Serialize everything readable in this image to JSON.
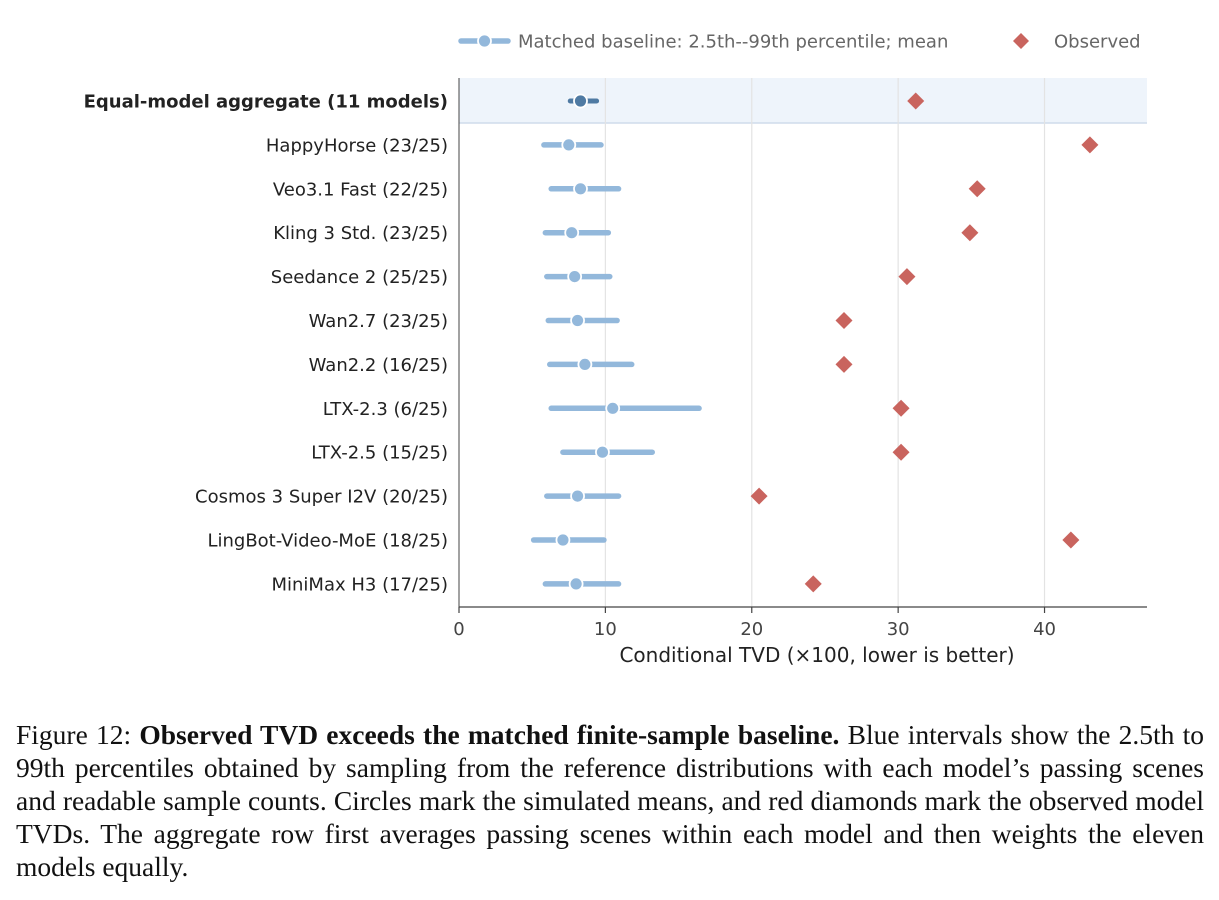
{
  "chart_data": {
    "type": "scatter",
    "xlabel": "Conditional TVD (×100, lower is better)",
    "xlim": [
      0,
      47
    ],
    "xticks": [
      0,
      10,
      20,
      30,
      40
    ],
    "grid": "vertical",
    "legend": {
      "placement": "top-right",
      "entries": [
        {
          "label": "Matched baseline: 2.5th--99th percentile; mean",
          "marker": "interval-circle"
        },
        {
          "label": "Observed",
          "marker": "diamond"
        }
      ]
    },
    "colors": {
      "interval": "#93b8db",
      "aggregate_interval": "#4f7aa3",
      "observed": "#c9645e",
      "highlight_band": "#eef4fb"
    },
    "rows": [
      {
        "label": "Equal-model aggregate (11 models)",
        "aggregate": true,
        "low": 7.6,
        "high": 9.4,
        "mean": 8.3,
        "observed": 31.2
      },
      {
        "label": "HappyHorse (23/25)",
        "low": 5.8,
        "high": 9.7,
        "mean": 7.5,
        "observed": 43.1
      },
      {
        "label": "Veo3.1 Fast (22/25)",
        "low": 6.3,
        "high": 10.9,
        "mean": 8.3,
        "observed": 35.4
      },
      {
        "label": "Kling 3 Std. (23/25)",
        "low": 5.9,
        "high": 10.2,
        "mean": 7.7,
        "observed": 34.9
      },
      {
        "label": "Seedance 2 (25/25)",
        "low": 6.0,
        "high": 10.3,
        "mean": 7.9,
        "observed": 30.6
      },
      {
        "label": "Wan2.7 (23/25)",
        "low": 6.1,
        "high": 10.8,
        "mean": 8.1,
        "observed": 26.3
      },
      {
        "label": "Wan2.2 (16/25)",
        "low": 6.2,
        "high": 11.8,
        "mean": 8.6,
        "observed": 26.3
      },
      {
        "label": "LTX-2.3 (6/25)",
        "low": 6.3,
        "high": 16.4,
        "mean": 10.5,
        "observed": 30.2
      },
      {
        "label": "LTX-2.5 (15/25)",
        "low": 7.1,
        "high": 13.2,
        "mean": 9.8,
        "observed": 30.2
      },
      {
        "label": "Cosmos 3 Super I2V (20/25)",
        "low": 6.0,
        "high": 10.9,
        "mean": 8.1,
        "observed": 20.5
      },
      {
        "label": "LingBot-Video-MoE (18/25)",
        "low": 5.1,
        "high": 9.9,
        "mean": 7.1,
        "observed": 41.8
      },
      {
        "label": "MiniMax H3 (17/25)",
        "low": 5.9,
        "high": 10.9,
        "mean": 8.0,
        "observed": 24.2
      }
    ]
  },
  "caption": {
    "prefix": "Figure 12: ",
    "bold": "Observed TVD exceeds the matched finite-sample baseline.",
    "text": " Blue intervals show the 2.5th to 99th percentiles obtained by sampling from the reference distributions with each model’s passing scenes and readable sample counts. Circles mark the simulated means, and red diamonds mark the observed model TVDs. The aggregate row first averages passing scenes within each model and then weights the eleven models equally."
  }
}
